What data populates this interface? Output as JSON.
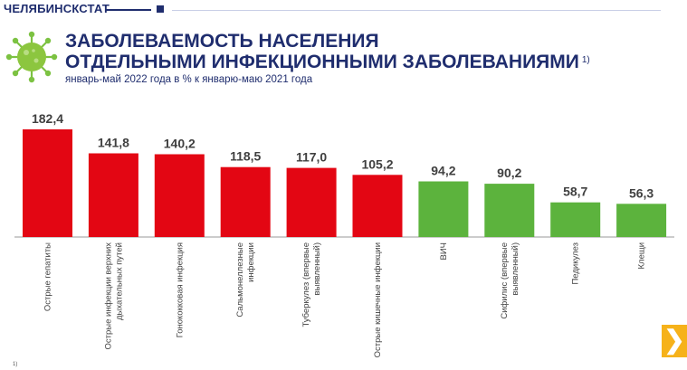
{
  "header": {
    "brand": "ЧЕЛЯБИНСКСТАТ",
    "title_line1": "ЗАБОЛЕВАЕМОСТЬ НАСЕЛЕНИЯ",
    "title_line2": "ОТДЕЛЬНЫМИ ИНФЕКЦИОННЫМИ ЗАБОЛЕВАНИЯМИ",
    "title_footnote": "1)",
    "subtitle": "январь-май 2022 года в % к январю-маю 2021 года"
  },
  "footer": {
    "footnote_mark": "1)"
  },
  "nav": {
    "next_icon": "chevron-right-icon",
    "next_symbol": "❯"
  },
  "colors": {
    "brand": "#1f2d6e",
    "above_100": "#e30613",
    "below_100": "#5cb33d",
    "accent": "#f6b21a"
  },
  "chart_data": {
    "type": "bar",
    "categories": [
      "Острые гепатиты",
      "Острые инфекции верхних дыхательных путей",
      "Гонококковая инфекция",
      "Сальмонеллезные инфекции",
      "Туберкулез (впервые выявленный)",
      "Острые кишечные инфекции",
      "ВИЧ",
      "Сифилис (впервые выявленный)",
      "Педикулез",
      "Клещи"
    ],
    "category_lines": [
      [
        "Острые гепатиты"
      ],
      [
        "Острые инфекции верхних",
        "дыхательных путей"
      ],
      [
        "Гонококковая инфекция"
      ],
      [
        "Сальмонеллезные",
        "инфекции"
      ],
      [
        "Туберкулез (впервые",
        "выявленный)"
      ],
      [
        "Острые кишечные инфекции"
      ],
      [
        "ВИЧ"
      ],
      [
        "Сифилис (впервые",
        "выявленный)"
      ],
      [
        "Педикулез"
      ],
      [
        "Клещи"
      ]
    ],
    "values": [
      182.4,
      141.8,
      140.2,
      118.5,
      117.0,
      105.2,
      94.2,
      90.2,
      58.7,
      56.3
    ],
    "value_labels": [
      "182,4",
      "141,8",
      "140,2",
      "118,5",
      "117,0",
      "105,2",
      "94,2",
      "90,2",
      "58,7",
      "56,3"
    ],
    "unit": "%",
    "ylim": [
      0,
      190
    ],
    "grid": false,
    "legend": "none",
    "color_rule": "red when value > 100, green otherwise"
  }
}
